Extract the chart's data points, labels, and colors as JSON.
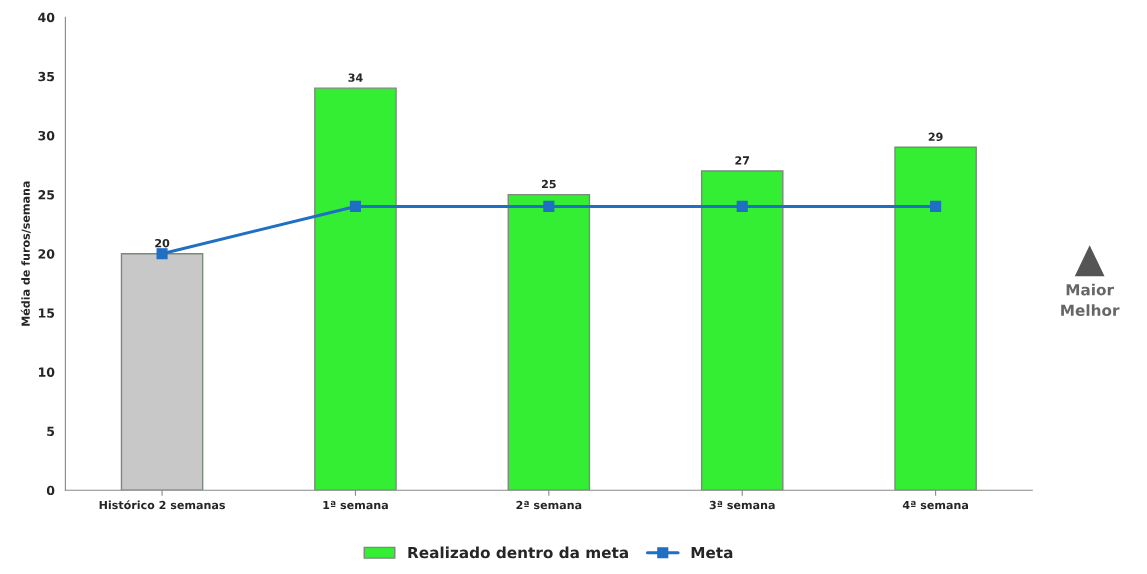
{
  "chart_data": {
    "type": "bar",
    "ylabel": "Média de furos/semana",
    "categories": [
      "Histórico 2 semanas",
      "1ª semana",
      "2ª semana",
      "3ª semana",
      "4ª semana"
    ],
    "series": [
      {
        "name": "Realizado dentro da meta",
        "color": "#33ee33",
        "colors": [
          "#c8c8c8",
          "#33ee33",
          "#33ee33",
          "#33ee33",
          "#33ee33"
        ],
        "values": [
          20,
          34,
          25,
          27,
          29
        ],
        "value_labels": [
          "20",
          "34",
          "25",
          "27",
          "29"
        ]
      },
      {
        "name": "Meta",
        "type": "line",
        "color": "#1f6fc5",
        "marker": "square",
        "line_style": "solid",
        "values": [
          20,
          24,
          24,
          24,
          24
        ]
      }
    ],
    "ylim": [
      0,
      40
    ],
    "yticks": [
      0,
      5,
      10,
      15,
      20,
      25,
      30,
      35,
      40
    ],
    "grid": false,
    "legend": "bottom",
    "annotations": [
      "Maior\nMelhor"
    ]
  }
}
